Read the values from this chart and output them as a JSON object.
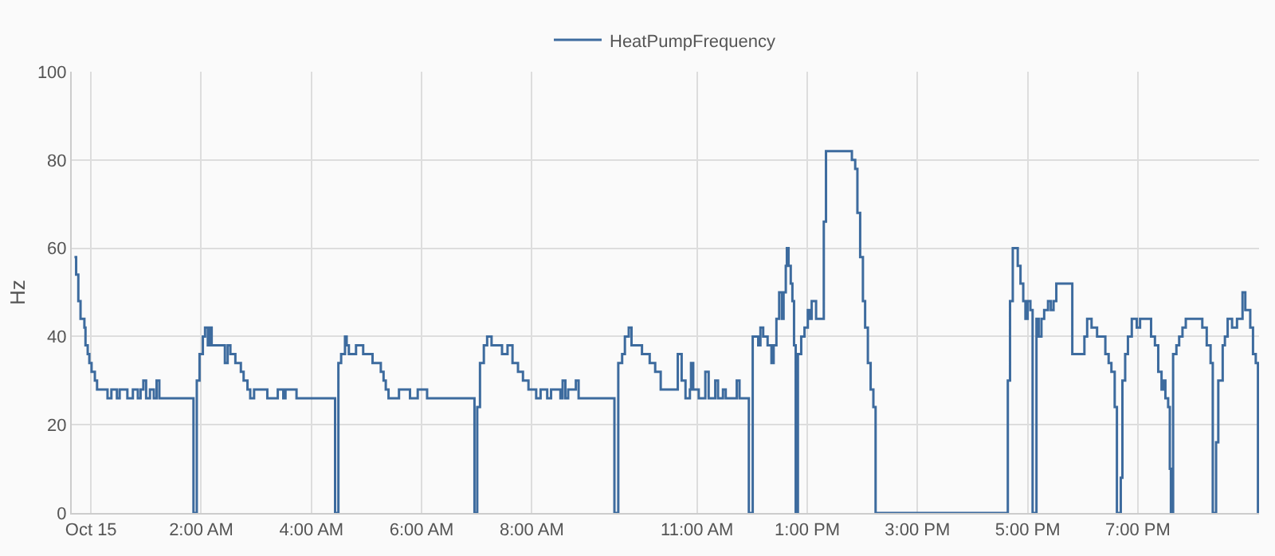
{
  "chart_data": {
    "type": "step",
    "ylabel": "Hz",
    "legend": "top",
    "grid": true,
    "marker": "none",
    "xlim": [
      -0.35,
      21.2
    ],
    "xticks": [
      {
        "value": 0,
        "label": "Oct 15"
      },
      {
        "value": 2,
        "label": "2:00 AM"
      },
      {
        "value": 4,
        "label": "4:00 AM"
      },
      {
        "value": 6,
        "label": "6:00 AM"
      },
      {
        "value": 8,
        "label": "8:00 AM"
      },
      {
        "value": 11,
        "label": "11:00 AM"
      },
      {
        "value": 13,
        "label": "1:00 PM"
      },
      {
        "value": 15,
        "label": "3:00 PM"
      },
      {
        "value": 17,
        "label": "5:00 PM"
      },
      {
        "value": 19,
        "label": "7:00 PM"
      }
    ],
    "ylim": [
      0,
      100
    ],
    "yticks": [
      0,
      20,
      40,
      60,
      80,
      100
    ],
    "series": [
      {
        "name": "HeatPumpFrequency",
        "color": "#3d6b9e",
        "x": [
          -0.3,
          -0.27,
          -0.23,
          -0.19,
          -0.12,
          -0.1,
          -0.06,
          -0.03,
          0.01,
          0.07,
          0.11,
          0.3,
          0.37,
          0.47,
          0.52,
          0.66,
          0.76,
          0.85,
          0.9,
          0.95,
          1.0,
          1.07,
          1.14,
          1.19,
          1.24,
          1.86,
          1.92,
          1.97,
          2.03,
          2.07,
          2.12,
          2.15,
          2.19,
          2.43,
          2.48,
          2.53,
          2.62,
          2.72,
          2.77,
          2.84,
          2.89,
          2.96,
          3.2,
          3.39,
          3.49,
          3.53,
          3.73,
          4.43,
          4.49,
          4.54,
          4.61,
          4.64,
          4.68,
          4.81,
          4.94,
          5.11,
          5.26,
          5.31,
          5.35,
          5.4,
          5.59,
          5.79,
          5.93,
          6.1,
          6.96,
          7.01,
          7.06,
          7.13,
          7.19,
          7.27,
          7.46,
          7.56,
          7.65,
          7.75,
          7.84,
          7.94,
          8.08,
          8.16,
          8.28,
          8.35,
          8.52,
          8.56,
          8.61,
          8.66,
          8.8,
          8.85,
          9.5,
          9.57,
          9.64,
          9.69,
          9.76,
          9.81,
          10.0,
          10.14,
          10.24,
          10.34,
          10.65,
          10.72,
          10.79,
          10.87,
          10.89,
          10.93,
          11.03,
          11.15,
          11.21,
          11.33,
          11.38,
          11.47,
          11.52,
          11.72,
          11.77,
          11.94,
          12.01,
          12.11,
          12.15,
          12.2,
          12.28,
          12.35,
          12.39,
          12.44,
          12.49,
          12.54,
          12.57,
          12.61,
          12.63,
          12.66,
          12.7,
          12.73,
          12.76,
          12.79,
          12.83,
          12.89,
          12.95,
          13.01,
          13.05,
          13.08,
          13.16,
          13.3,
          13.34,
          13.81,
          13.87,
          13.91,
          13.96,
          14.01,
          14.05,
          14.1,
          14.15,
          14.2,
          14.24,
          16.64,
          16.68,
          16.73,
          16.82,
          16.87,
          16.92,
          16.96,
          17.0,
          17.05,
          17.09,
          17.16,
          17.2,
          17.25,
          17.3,
          17.37,
          17.42,
          17.47,
          17.52,
          17.81,
          18.03,
          18.08,
          18.16,
          18.26,
          18.41,
          18.47,
          18.52,
          18.58,
          18.62,
          18.69,
          18.72,
          18.77,
          18.82,
          18.89,
          18.98,
          19.04,
          19.24,
          19.31,
          19.37,
          19.43,
          19.46,
          19.5,
          19.55,
          19.58,
          19.6,
          19.64,
          19.7,
          19.75,
          19.81,
          19.87,
          20.17,
          20.25,
          20.32,
          20.36,
          20.42,
          20.46,
          20.54,
          20.58,
          20.63,
          20.71,
          20.8,
          20.9,
          20.95,
          21.04,
          21.09,
          21.14,
          21.18
        ],
        "values": [
          58,
          54,
          48,
          44,
          42,
          38,
          36,
          34,
          32,
          30,
          28,
          26,
          28,
          26,
          28,
          26,
          28,
          26,
          28,
          30,
          26,
          28,
          26,
          30,
          26,
          0,
          30,
          36,
          40,
          42,
          38,
          42,
          38,
          34,
          38,
          36,
          34,
          32,
          30,
          28,
          26,
          28,
          26,
          28,
          26,
          28,
          26,
          0,
          34,
          36,
          40,
          38,
          36,
          38,
          36,
          34,
          32,
          30,
          28,
          26,
          28,
          26,
          28,
          26,
          0,
          24,
          34,
          38,
          40,
          38,
          36,
          38,
          34,
          32,
          30,
          28,
          26,
          28,
          26,
          28,
          26,
          30,
          26,
          28,
          30,
          26,
          0,
          34,
          36,
          40,
          42,
          38,
          36,
          34,
          32,
          28,
          36,
          30,
          26,
          28,
          34,
          28,
          26,
          32,
          26,
          30,
          26,
          28,
          26,
          30,
          26,
          0,
          40,
          38,
          42,
          40,
          38,
          34,
          38,
          44,
          50,
          44,
          50,
          56,
          60,
          56,
          52,
          48,
          38,
          0,
          36,
          40,
          42,
          46,
          44,
          48,
          44,
          66,
          82,
          80,
          78,
          68,
          58,
          48,
          42,
          34,
          28,
          24,
          0,
          30,
          48,
          60,
          56,
          52,
          48,
          44,
          48,
          46,
          0,
          44,
          40,
          44,
          46,
          48,
          46,
          48,
          52,
          36,
          40,
          44,
          42,
          40,
          36,
          34,
          32,
          24,
          0,
          8,
          30,
          36,
          40,
          44,
          42,
          44,
          40,
          38,
          32,
          28,
          30,
          26,
          24,
          10,
          0,
          36,
          38,
          40,
          42,
          44,
          42,
          38,
          34,
          0,
          16,
          30,
          38,
          40,
          44,
          42,
          44,
          50,
          46,
          42,
          36,
          34,
          0
        ]
      }
    ]
  }
}
